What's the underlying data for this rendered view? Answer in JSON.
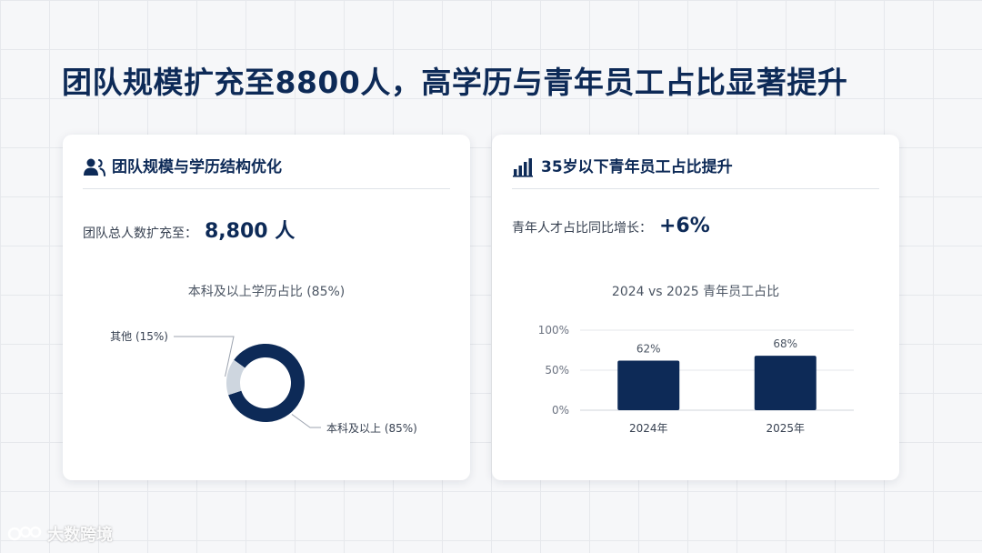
{
  "page": {
    "title": "团队规模扩充至8800人，高学历与青年员工占比显著提升"
  },
  "left_card": {
    "title": "团队规模与学历结构优化",
    "stat_label": "团队总人数扩充至：",
    "stat_value": "8,800 人",
    "chart_title": "本科及以上学历占比 (85%)"
  },
  "right_card": {
    "title": "35岁以下青年员工占比提升",
    "stat_label": "青年人才占比同比增长：",
    "stat_value": "+6%",
    "chart_title": "2024 vs 2025 青年员工占比"
  },
  "colors": {
    "navy": "#0d2a57",
    "light_gray": "#ced6df",
    "leader": "#9ca3af"
  },
  "chart_data": [
    {
      "type": "pie",
      "variant": "donut",
      "title": "本科及以上学历占比 (85%)",
      "slices": [
        {
          "label": "本科及以上 (85%)",
          "value": 85,
          "color": "#0d2a57"
        },
        {
          "label": "其他 (15%)",
          "value": 15,
          "color": "#ced6df"
        }
      ]
    },
    {
      "type": "bar",
      "title": "2024 vs 2025 青年员工占比",
      "categories": [
        "2024年",
        "2025年"
      ],
      "values": [
        62,
        68
      ],
      "data_labels": [
        "62%",
        "68%"
      ],
      "ylim": [
        0,
        100
      ],
      "yticks": [
        0,
        50,
        100
      ],
      "ytick_labels": [
        "0%",
        "50%",
        "100%"
      ],
      "grid": true,
      "color": "#0d2a57"
    }
  ],
  "watermark": {
    "text": "大数跨境"
  }
}
